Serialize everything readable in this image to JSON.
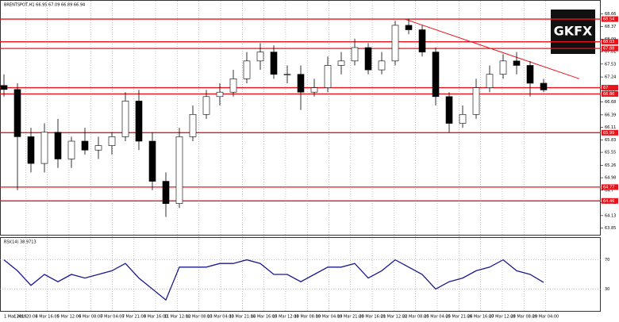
{
  "chart_data": {
    "type": "candlestick",
    "title": "BRENTSPOT,H1 66.95 67.09 66.89 66.94",
    "logo": "GKFX",
    "time_labels": [
      "1 Mar 2019",
      "1 Mar 20:00",
      "4 Mar 16:00",
      "5 Mar 12:00",
      "6 Mar 08:00",
      "7 Mar 04:00",
      "7 Mar 21:00",
      "8 Mar 16:00",
      "11 Mar 12:00",
      "12 Mar 08:00",
      "13 Mar 04:00",
      "13 Mar 21:00",
      "14 Mar 16:00",
      "15 Mar 12:00",
      "18 Mar 08:00",
      "19 Mar 04:00",
      "19 Mar 21:00",
      "20 Mar 16:00",
      "21 Mar 12:00",
      "22 Mar 08:00",
      "25 Mar 04:00",
      "25 Mar 21:00",
      "26 Mar 16:00",
      "27 Mar 12:00",
      "28 Mar 08:00",
      "29 Mar 04:00"
    ],
    "open": [
      67.05,
      66.96,
      65.9,
      65.3,
      66.0,
      65.4,
      65.8,
      65.6,
      65.7,
      65.9,
      66.7,
      65.8,
      64.9,
      64.4,
      65.9,
      66.4,
      66.8,
      66.9,
      67.2,
      67.6,
      67.8,
      67.3,
      67.3,
      66.9,
      67.0,
      67.5,
      67.6,
      67.9,
      67.4,
      67.6,
      68.4,
      68.3,
      67.8,
      66.8,
      66.2,
      66.4,
      67.0,
      67.3,
      67.6,
      67.5,
      67.1
    ],
    "high": [
      67.3,
      67.1,
      66.1,
      66.2,
      66.3,
      65.9,
      66.1,
      65.9,
      66.0,
      66.9,
      66.95,
      66.0,
      65.1,
      66.1,
      66.6,
      66.95,
      67.1,
      67.4,
      67.8,
      68.0,
      67.95,
      67.5,
      67.5,
      67.2,
      67.7,
      67.8,
      68.1,
      68.0,
      67.8,
      68.5,
      68.55,
      68.4,
      67.9,
      66.9,
      66.6,
      67.2,
      67.5,
      67.75,
      67.8,
      67.6,
      67.2
    ],
    "low": [
      66.8,
      64.7,
      65.1,
      65.1,
      65.2,
      65.2,
      65.5,
      65.4,
      65.5,
      65.8,
      65.6,
      64.7,
      64.1,
      64.3,
      65.8,
      66.3,
      66.6,
      66.8,
      67.1,
      67.4,
      67.2,
      67.1,
      66.5,
      66.8,
      66.9,
      67.3,
      67.5,
      67.3,
      67.3,
      67.5,
      68.2,
      67.7,
      66.6,
      66.0,
      66.1,
      66.3,
      66.9,
      67.2,
      67.3,
      66.8,
      66.9
    ],
    "close": [
      66.96,
      65.9,
      65.3,
      66.0,
      65.4,
      65.8,
      65.6,
      65.7,
      65.9,
      66.7,
      65.8,
      64.9,
      64.4,
      65.9,
      66.4,
      66.8,
      66.9,
      67.2,
      67.6,
      67.8,
      67.3,
      67.3,
      66.9,
      67.0,
      67.5,
      67.6,
      67.9,
      67.4,
      67.6,
      68.4,
      68.3,
      67.8,
      66.8,
      66.2,
      66.4,
      67.0,
      67.3,
      67.6,
      67.5,
      67.1,
      66.95
    ],
    "ylim": [
      63.7,
      68.95
    ],
    "yticks": [
      63.85,
      64.13,
      64.42,
      64.7,
      64.98,
      65.26,
      65.55,
      65.83,
      66.11,
      66.39,
      66.68,
      66.96,
      67.24,
      67.53,
      67.81,
      68.09,
      68.37,
      68.66
    ],
    "levels": [
      68.54,
      68.03,
      67.88,
      67.0,
      66.86,
      65.99,
      64.77,
      64.46
    ],
    "level_color": "#e8141c",
    "trendline": [
      68.54,
      67.2
    ],
    "rsi": {
      "title": "RSI(14) 38.9713",
      "color": "#1a1a8c",
      "values": [
        70,
        55,
        35,
        50,
        40,
        50,
        45,
        50,
        55,
        65,
        45,
        30,
        15,
        60,
        60,
        60,
        65,
        65,
        70,
        65,
        50,
        50,
        40,
        50,
        60,
        60,
        65,
        45,
        55,
        70,
        60,
        50,
        30,
        40,
        45,
        55,
        60,
        70,
        55,
        50,
        39
      ],
      "ylim": [
        0,
        100
      ],
      "yticks": [
        30,
        70
      ]
    },
    "grid": true
  }
}
